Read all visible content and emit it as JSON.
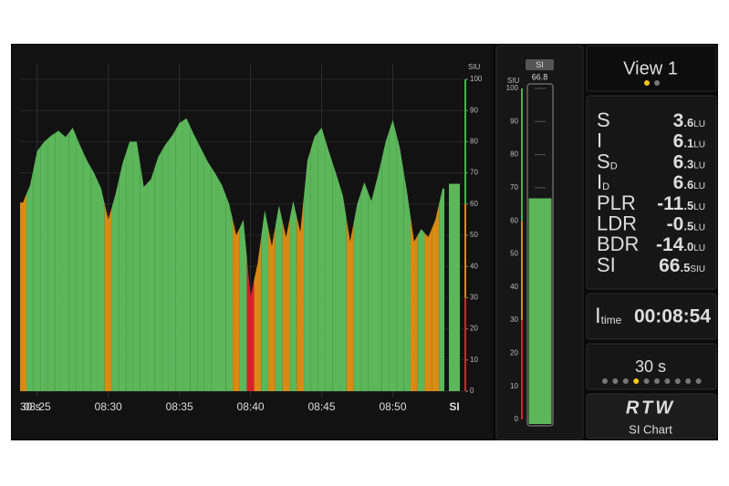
{
  "chart_data": {
    "type": "area",
    "x": [
      24,
      24.5,
      25,
      25.5,
      26,
      26.5,
      27,
      27.5,
      28,
      28.5,
      29,
      29.5,
      30,
      30.5,
      31,
      31.5,
      32,
      32.5,
      33,
      33.5,
      34,
      34.5,
      35,
      35.5,
      36,
      36.5,
      37,
      37.5,
      38,
      38.5,
      39,
      39.5,
      40,
      40.5,
      41,
      41.5,
      42,
      42.5,
      43,
      43.5,
      44,
      44.5,
      45,
      45.5,
      46,
      46.5,
      47,
      47.5,
      48,
      48.5,
      49,
      49.5,
      50,
      50.5,
      51,
      51.5,
      52,
      52.5,
      53,
      53.5
    ],
    "values": [
      60.5,
      66,
      77,
      80,
      82,
      83.5,
      81.5,
      84.5,
      79,
      74,
      70,
      65,
      55,
      63,
      73,
      80,
      80,
      65.5,
      68,
      75,
      79,
      82,
      86,
      87.5,
      82.5,
      78,
      73.5,
      70,
      66,
      60,
      50,
      55,
      30.4,
      41,
      58,
      46.5,
      59.6,
      49.4,
      61,
      51,
      74,
      81.6,
      84.5,
      77,
      70,
      62.6,
      48,
      60,
      67,
      61,
      70,
      80,
      87,
      78,
      64,
      48,
      52,
      49.4,
      55,
      65
    ],
    "colors": [
      "#d88a12",
      "#5cb65a",
      "#5cb65a",
      "#5cb65a",
      "#5cb65a",
      "#5cb65a",
      "#5cb65a",
      "#5cb65a",
      "#5cb65a",
      "#5cb65a",
      "#5cb65a",
      "#5cb65a",
      "#d88a12",
      "#5cb65a",
      "#5cb65a",
      "#5cb65a",
      "#5cb65a",
      "#5cb65a",
      "#5cb65a",
      "#5cb65a",
      "#5cb65a",
      "#5cb65a",
      "#5cb65a",
      "#5cb65a",
      "#5cb65a",
      "#5cb65a",
      "#5cb65a",
      "#5cb65a",
      "#5cb65a",
      "#5cb65a",
      "#d88a12",
      "#5cb65a",
      "#d8202a",
      "#d88a12",
      "#5cb65a",
      "#d88a12",
      "#5cb65a",
      "#d88a12",
      "#5cb65a",
      "#d88a12",
      "#5cb65a",
      "#5cb65a",
      "#5cb65a",
      "#5cb65a",
      "#5cb65a",
      "#5cb65a",
      "#d88a12",
      "#5cb65a",
      "#5cb65a",
      "#5cb65a",
      "#5cb65a",
      "#5cb65a",
      "#5cb65a",
      "#5cb65a",
      "#5cb65a",
      "#d88a12",
      "#5cb65a",
      "#d88a12",
      "#d88a12",
      "#5cb65a"
    ],
    "xlim": [
      23.8,
      55.1
    ],
    "xticks": [
      {
        "value": 25,
        "label": "08:25"
      },
      {
        "value": 30,
        "label": "08:30"
      },
      {
        "value": 35,
        "label": "08:35"
      },
      {
        "value": 40,
        "label": "08:40"
      },
      {
        "value": 45,
        "label": "08:45"
      },
      {
        "value": 50,
        "label": "08:50"
      }
    ],
    "ylim": [
      0,
      100
    ],
    "yticks": [
      0,
      10,
      20,
      30,
      40,
      50,
      60,
      70,
      80,
      90,
      100
    ],
    "y_label": "SIU",
    "window": "30 s",
    "bar_label": "SI",
    "grid": true
  },
  "meter": {
    "label": "SI",
    "value": 66.8,
    "unit": "SIU",
    "ylim": [
      0,
      100
    ],
    "yticks": [
      0,
      10,
      20,
      30,
      40,
      50,
      60,
      70,
      80,
      90,
      100
    ]
  },
  "view": {
    "title": "View 1"
  },
  "readings": [
    {
      "label": "S",
      "int": "3",
      "dec": ".6",
      "unit": "LU",
      "color": "#e01e24"
    },
    {
      "label": "I",
      "int": "6",
      "dec": ".1",
      "unit": "LU",
      "color": "#e01e24"
    },
    {
      "label": "S",
      "sub": "D",
      "int": "6",
      "dec": ".3",
      "unit": "LU",
      "color": "#e01e24"
    },
    {
      "label": "I",
      "sub": "D",
      "int": "6",
      "dec": ".6",
      "unit": "LU",
      "color": "#e01e24"
    },
    {
      "label": "PLR",
      "int": "-11",
      "dec": ".5",
      "unit": "LU",
      "color": "#3fb54a"
    },
    {
      "label": "LDR",
      "int": "-0",
      "dec": ".5",
      "unit": "LU",
      "color": "#3fb54a"
    },
    {
      "label": "BDR",
      "int": "-14",
      "dec": ".0",
      "unit": "LU",
      "color": "#3fb54a"
    },
    {
      "label": "SI",
      "int": "66",
      "dec": ".5",
      "unit": "SIU",
      "color": "#3fb54a",
      "value": 66.5
    }
  ],
  "time": {
    "label": "I",
    "sub": "time",
    "value": "00:08:54"
  },
  "window_panel": {
    "label": "30 s"
  },
  "logo": {
    "brand": "RTW",
    "caption": "SI Chart"
  }
}
